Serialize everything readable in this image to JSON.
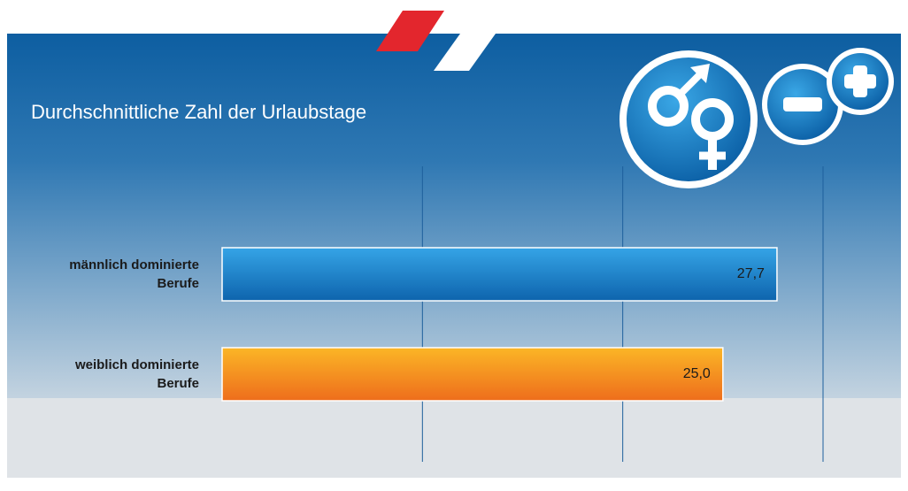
{
  "chart_data": {
    "type": "hbar",
    "title": "Durchschnittliche Zahl der Urlaubstage",
    "categories": [
      "männlich dominierte Berufe",
      "weiblich dominierte Berufe"
    ],
    "values": [
      27.7,
      25.0
    ],
    "value_labels": [
      "27,7",
      "25,0"
    ],
    "colors": [
      "#1a7cc4",
      "#f28a1e"
    ],
    "xlim": [
      0,
      30
    ],
    "xticks": [
      10,
      20,
      30
    ],
    "grid": true
  }
}
